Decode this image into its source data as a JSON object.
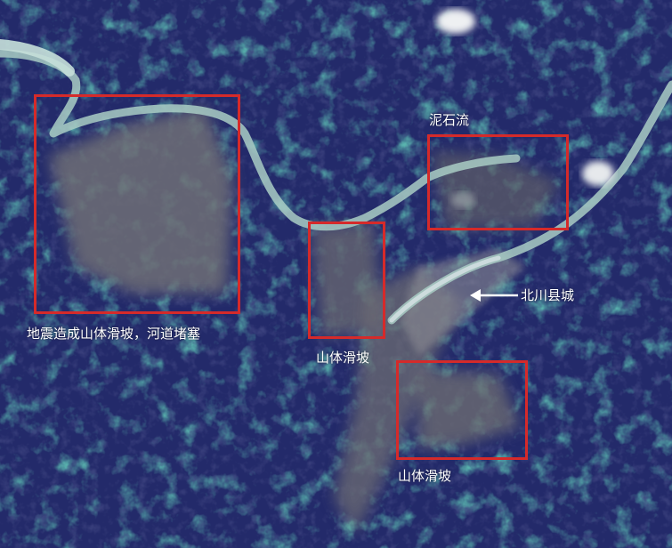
{
  "labels": {
    "debris_flow": "泥石流",
    "county_town": "北川县城",
    "quake_landslide": "地震造成山体滑坡，河道堵塞",
    "landslide_center": "山体滑坡",
    "landslide_south": "山体滑坡"
  },
  "colors": {
    "box": "#d52a2a",
    "label": "#ffffff",
    "vegetation": "#1f2a6b",
    "river": "#a9ccc4",
    "bare_ground": "#6e6e78"
  },
  "icons": {
    "arrow": "arrow-left-icon"
  }
}
